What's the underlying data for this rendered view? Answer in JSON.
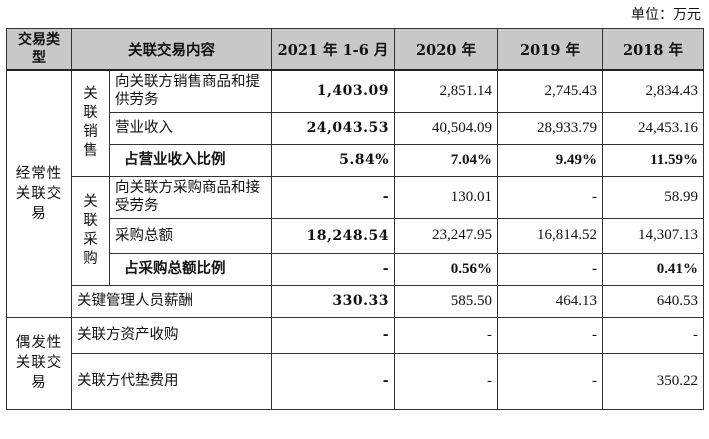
{
  "unit_label": "单位：万元",
  "header": {
    "type": "交易类型",
    "content": "关联交易内容",
    "y2021": "2021 年 1-6 月",
    "y2020": "2020 年",
    "y2019": "2019 年",
    "y2018": "2018 年"
  },
  "groups": {
    "recurring": "经常性关联交易",
    "occasional": "偶发性关联交易",
    "sales": "关联销售",
    "purchase": "关联采购"
  },
  "rows": [
    {
      "item": "向关联方销售商品和提供劳务",
      "v2021": "1,403.09",
      "v2020": "2,851.14",
      "v2019": "2,745.43",
      "v2018": "2,834.43"
    },
    {
      "item": "营业收入",
      "v2021": "24,043.53",
      "v2020": "40,504.09",
      "v2019": "28,933.79",
      "v2018": "24,453.16"
    },
    {
      "item": "占营业收入比例",
      "v2021": "5.84%",
      "v2020": "7.04%",
      "v2019": "9.49%",
      "v2018": "11.59%"
    },
    {
      "item": "向关联方采购商品和接受劳务",
      "v2021": "-",
      "v2020": "130.01",
      "v2019": "-",
      "v2018": "58.99"
    },
    {
      "item": "采购总额",
      "v2021": "18,248.54",
      "v2020": "23,247.95",
      "v2019": "16,814.52",
      "v2018": "14,307.13"
    },
    {
      "item": "占采购总额比例",
      "v2021": "-",
      "v2020": "0.56%",
      "v2019": "-",
      "v2018": "0.41%"
    },
    {
      "item": "关键管理人员薪酬",
      "v2021": "330.33",
      "v2020": "585.50",
      "v2019": "464.13",
      "v2018": "640.53"
    },
    {
      "item": "关联方资产收购",
      "v2021": "-",
      "v2020": "-",
      "v2019": "-",
      "v2018": "-"
    },
    {
      "item": "关联方代垫费用",
      "v2021": "-",
      "v2020": "-",
      "v2019": "-",
      "v2018": "350.22"
    }
  ]
}
